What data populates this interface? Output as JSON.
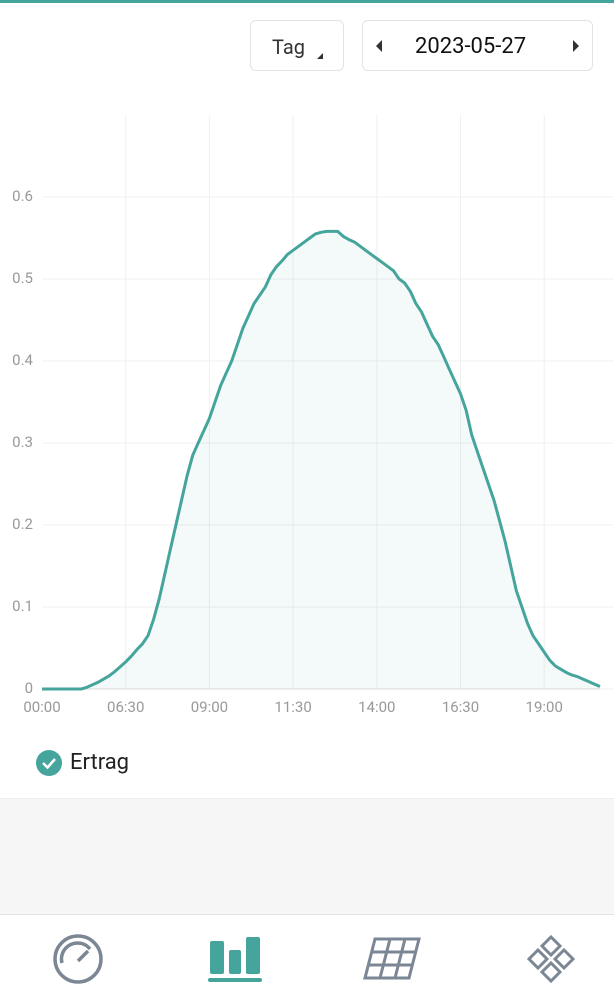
{
  "controls": {
    "period": "Tag",
    "date": "2023-05-27"
  },
  "chart_data": {
    "type": "line",
    "categories": [
      "00:00",
      null,
      null,
      null,
      null,
      null,
      null,
      null,
      null,
      null,
      null,
      null,
      null,
      null,
      null,
      "06:30",
      null,
      null,
      null,
      null,
      null,
      null,
      null,
      null,
      null,
      null,
      null,
      null,
      null,
      null,
      "09:00",
      null,
      null,
      null,
      null,
      null,
      null,
      null,
      null,
      null,
      null,
      null,
      null,
      null,
      null,
      "11:30",
      null,
      null,
      null,
      null,
      null,
      null,
      null,
      null,
      null,
      null,
      null,
      null,
      null,
      null,
      "14:00",
      null,
      null,
      null,
      null,
      null,
      null,
      null,
      null,
      null,
      null,
      null,
      null,
      null,
      null,
      "16:30",
      null,
      null,
      null,
      null,
      null,
      null,
      null,
      null,
      null,
      null,
      null,
      null,
      null,
      null,
      "19:00",
      null,
      null,
      null,
      null,
      null,
      null,
      null,
      null,
      null,
      null
    ],
    "series": [
      {
        "name": "Ertrag",
        "color": "#45a59c",
        "values": [
          0,
          0,
          0,
          0,
          0,
          0,
          0,
          0,
          0.002,
          0.005,
          0.008,
          0.012,
          0.016,
          0.021,
          0.027,
          0.033,
          0.04,
          0.048,
          0.055,
          0.065,
          0.085,
          0.11,
          0.14,
          0.17,
          0.2,
          0.23,
          0.26,
          0.285,
          0.3,
          0.315,
          0.33,
          0.35,
          0.37,
          0.385,
          0.4,
          0.42,
          0.44,
          0.455,
          0.47,
          0.48,
          0.49,
          0.505,
          0.515,
          0.522,
          0.53,
          0.535,
          0.54,
          0.545,
          0.55,
          0.555,
          0.557,
          0.558,
          0.558,
          0.558,
          0.552,
          0.548,
          0.545,
          0.54,
          0.535,
          0.53,
          0.525,
          0.52,
          0.515,
          0.51,
          0.5,
          0.495,
          0.485,
          0.47,
          0.46,
          0.445,
          0.43,
          0.42,
          0.405,
          0.39,
          0.375,
          0.36,
          0.34,
          0.31,
          0.29,
          0.27,
          0.25,
          0.23,
          0.205,
          0.18,
          0.15,
          0.12,
          0.1,
          0.08,
          0.065,
          0.055,
          0.045,
          0.035,
          0.028,
          0.024,
          0.02,
          0.017,
          0.015,
          0.012,
          0.009,
          0.006,
          0.003
        ]
      }
    ],
    "ylim": [
      0,
      0.7
    ],
    "yticks": [
      0,
      0.1,
      0.2,
      0.3,
      0.4,
      0.5,
      0.6
    ],
    "grid": true
  }
}
